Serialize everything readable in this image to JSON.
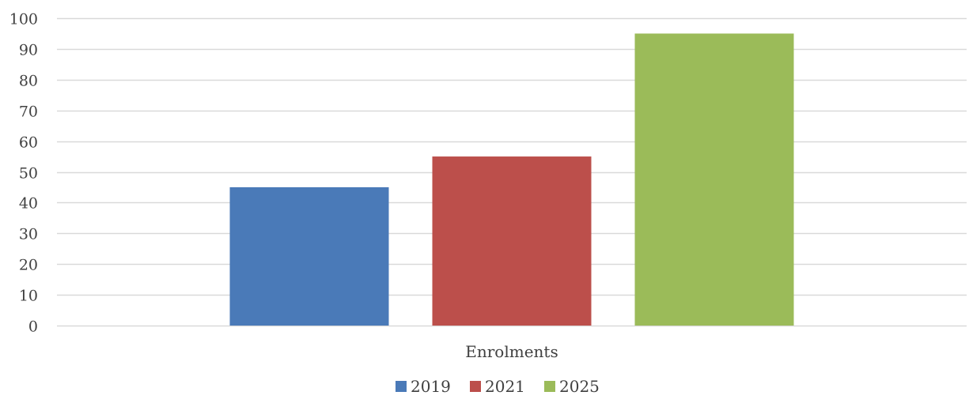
{
  "chart_data": {
    "type": "bar",
    "categories": [
      "Enrolments"
    ],
    "series": [
      {
        "name": "2019",
        "values": [
          45
        ],
        "color": "#4a7ab8"
      },
      {
        "name": "2021",
        "values": [
          55
        ],
        "color": "#bc4f4b"
      },
      {
        "name": "2025",
        "values": [
          95
        ],
        "color": "#9bbb59"
      }
    ],
    "title": "",
    "xlabel": "",
    "ylabel": "",
    "ylim": [
      0,
      100
    ],
    "yticks": [
      0,
      10,
      20,
      30,
      40,
      50,
      60,
      70,
      80,
      90,
      100
    ],
    "ytick_labels": [
      "0",
      "10",
      "20",
      "30",
      "40",
      "50",
      "60",
      "70",
      "80",
      "90",
      "100"
    ],
    "grid": true,
    "legend_position": "bottom",
    "gridline_color": "#d9d9d9"
  }
}
